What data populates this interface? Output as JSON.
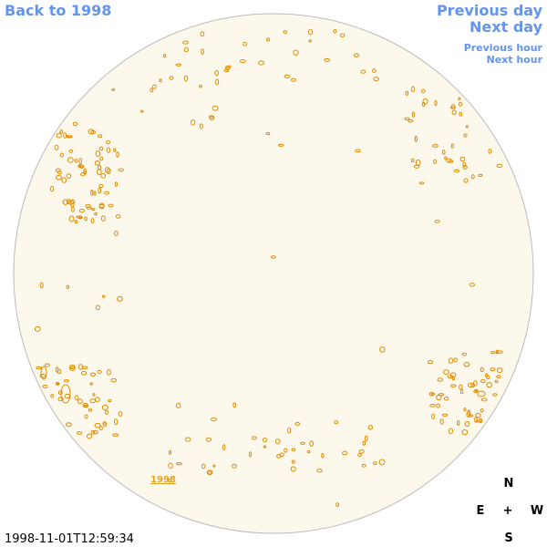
{
  "header": {
    "back_link": "Back to 1998",
    "previous_day": "Previous day",
    "next_day": "Next day",
    "previous_hour": "Previous hour",
    "next_hour": "Next hour"
  },
  "image": {
    "year_label": "1998"
  },
  "timestamp": "1998-11-01T12:59:34",
  "compass": {
    "north": "N",
    "east": "E",
    "center": "+",
    "west": "W",
    "south": "S"
  }
}
